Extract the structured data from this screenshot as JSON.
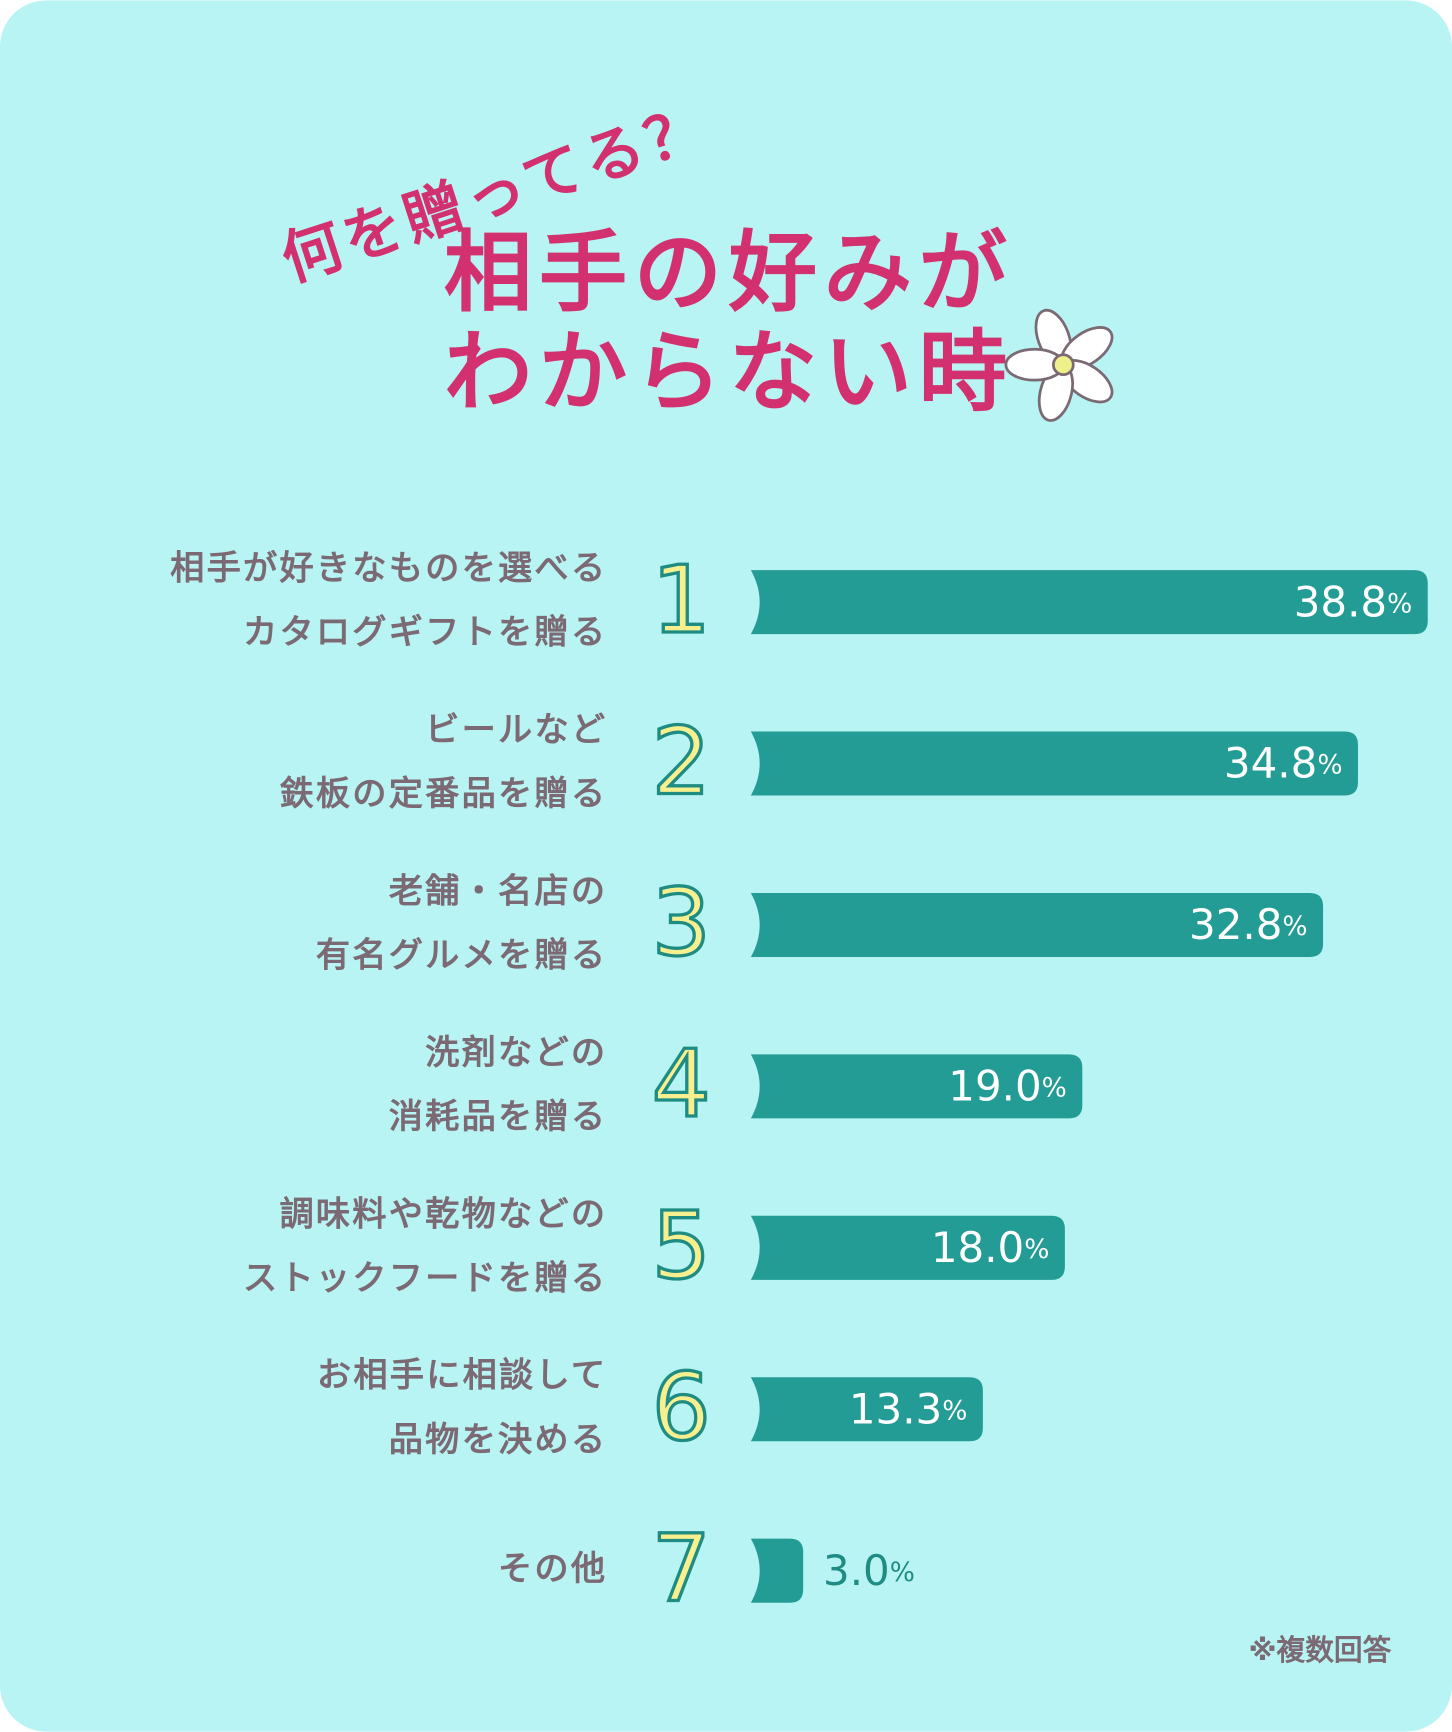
{
  "chart_data": {
    "type": "bar",
    "subtitle": "何を贈ってる？",
    "title": [
      "相手の好みが",
      "わからない時"
    ],
    "categories": [
      [
        "相手が好きなものを選べる",
        "カタログギフトを贈る"
      ],
      [
        "ビールなど",
        "鉄板の定番品を贈る"
      ],
      [
        "老舗・名店の",
        "有名グルメを贈る"
      ],
      [
        "洗剤などの",
        "消耗品を贈る"
      ],
      [
        "調味料や乾物などの",
        "ストックフードを贈る"
      ],
      [
        "お相手に相談して",
        "品物を決める"
      ],
      [
        "その他"
      ]
    ],
    "ranks": [
      1,
      2,
      3,
      4,
      5,
      6,
      7
    ],
    "values": [
      38.8,
      34.8,
      32.8,
      19.0,
      18.0,
      13.3,
      3.0
    ],
    "value_labels": [
      "38.8%",
      "34.8%",
      "32.8%",
      "19.0%",
      "18.0%",
      "13.3%",
      "3.0%"
    ],
    "color": "#229c94",
    "note": "※複数回答"
  }
}
